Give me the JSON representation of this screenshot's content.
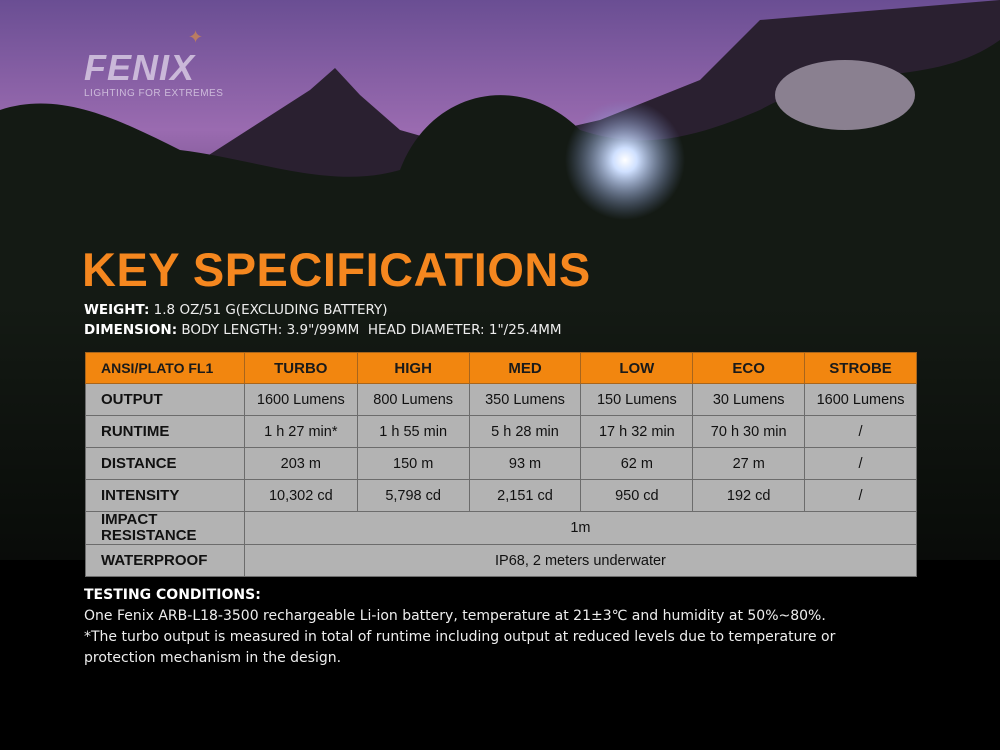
{
  "brand": {
    "name": "FENIX",
    "tagline": "LIGHTING FOR EXTREMES"
  },
  "title": "KEY SPECIFICATIONS",
  "specs": {
    "weight_label": "WEIGHT:",
    "weight_value": " 1.8 OZ/51 G(EXCLUDING BATTERY)",
    "dimension_label": "DIMENSION:",
    "dimension_value": " BODY LENGTH: 3.9\"/99MM  HEAD DIAMETER: 1\"/25.4MM"
  },
  "table": {
    "headers": [
      "ANSI/PLATO FL1",
      "TURBO",
      "HIGH",
      "MED",
      "LOW",
      "ECO",
      "STROBE"
    ],
    "rows": [
      {
        "label": "OUTPUT",
        "cells": [
          "1600 Lumens",
          "800 Lumens",
          "350 Lumens",
          "150 Lumens",
          "30 Lumens",
          "1600 Lumens"
        ]
      },
      {
        "label": "RUNTIME",
        "cells": [
          "1 h 27 min*",
          "1 h 55 min",
          "5 h 28 min",
          "17 h 32 min",
          "70 h 30 min",
          "/"
        ]
      },
      {
        "label": "DISTANCE",
        "cells": [
          "203 m",
          "150 m",
          "93 m",
          "62 m",
          "27 m",
          "/"
        ]
      },
      {
        "label": "INTENSITY",
        "cells": [
          "10,302 cd",
          "5,798 cd",
          "2,151 cd",
          "950 cd",
          "192 cd",
          "/"
        ]
      }
    ],
    "impact": {
      "label_1": "IMPACT",
      "label_2": "RESISTANCE",
      "value": "1m"
    },
    "waterproof": {
      "label": "WATERPROOF",
      "value": "IP68, 2 meters underwater"
    }
  },
  "testing": {
    "heading": "TESTING CONDITIONS:",
    "line1": "One Fenix ARB-L18-3500 rechargeable Li-ion battery, temperature at 21±3℃ and humidity at 50%~80%.",
    "line2": "*The turbo output is measured in total of runtime including output at reduced levels due to temperature or",
    "line3": "protection mechanism in the design."
  },
  "colors": {
    "accent": "#f5871f",
    "header_bg": "#f2860f",
    "cell_bg": "#b3b3b3"
  }
}
